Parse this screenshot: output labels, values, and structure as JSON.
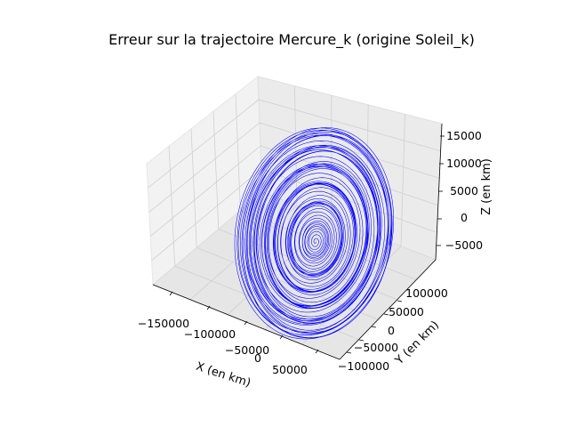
{
  "chart_data": {
    "type": "line",
    "projection": "3d",
    "title": "Erreur sur la trajectoire Mercure_k (origine Soleil_k)",
    "xlabel": "X (en km)",
    "ylabel": "Y (en km)",
    "zlabel": "Z (en km)",
    "x_ticks": [
      "−150000",
      "−100000",
      "−50000",
      "0",
      "50000"
    ],
    "y_ticks": [
      "−100000",
      "−50000",
      "0",
      "50000",
      "100000"
    ],
    "z_ticks": [
      "−5000",
      "0",
      "5000",
      "10000",
      "15000"
    ],
    "xlim": [
      -160000,
      90000
    ],
    "ylim": [
      -130000,
      130000
    ],
    "zlim": [
      -7000,
      16000
    ],
    "grid": true,
    "series": [
      {
        "color": "#0000ff",
        "shape": "expanding elliptical spiral of the position error",
        "center": {
          "x": 0,
          "y": 0,
          "z": 0
        },
        "max_amplitude": {
          "x": 115000,
          "y": 120000,
          "z": 15000
        },
        "turns": 60
      }
    ]
  }
}
